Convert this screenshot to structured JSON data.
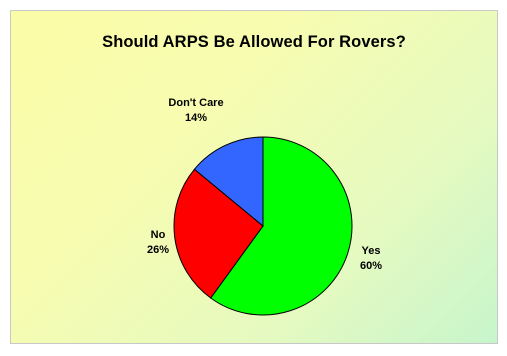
{
  "chart_data": {
    "type": "pie",
    "title": "Should ARPS Be Allowed For Rovers?",
    "legend": "none",
    "slices": [
      {
        "label": "Yes",
        "value": 60,
        "value_label": "60%",
        "color": "#00ff00"
      },
      {
        "label": "No",
        "value": 26,
        "value_label": "26%",
        "color": "#ff0000"
      },
      {
        "label": "Don't Care",
        "value": 14,
        "value_label": "14%",
        "color": "#3366ff"
      }
    ]
  }
}
